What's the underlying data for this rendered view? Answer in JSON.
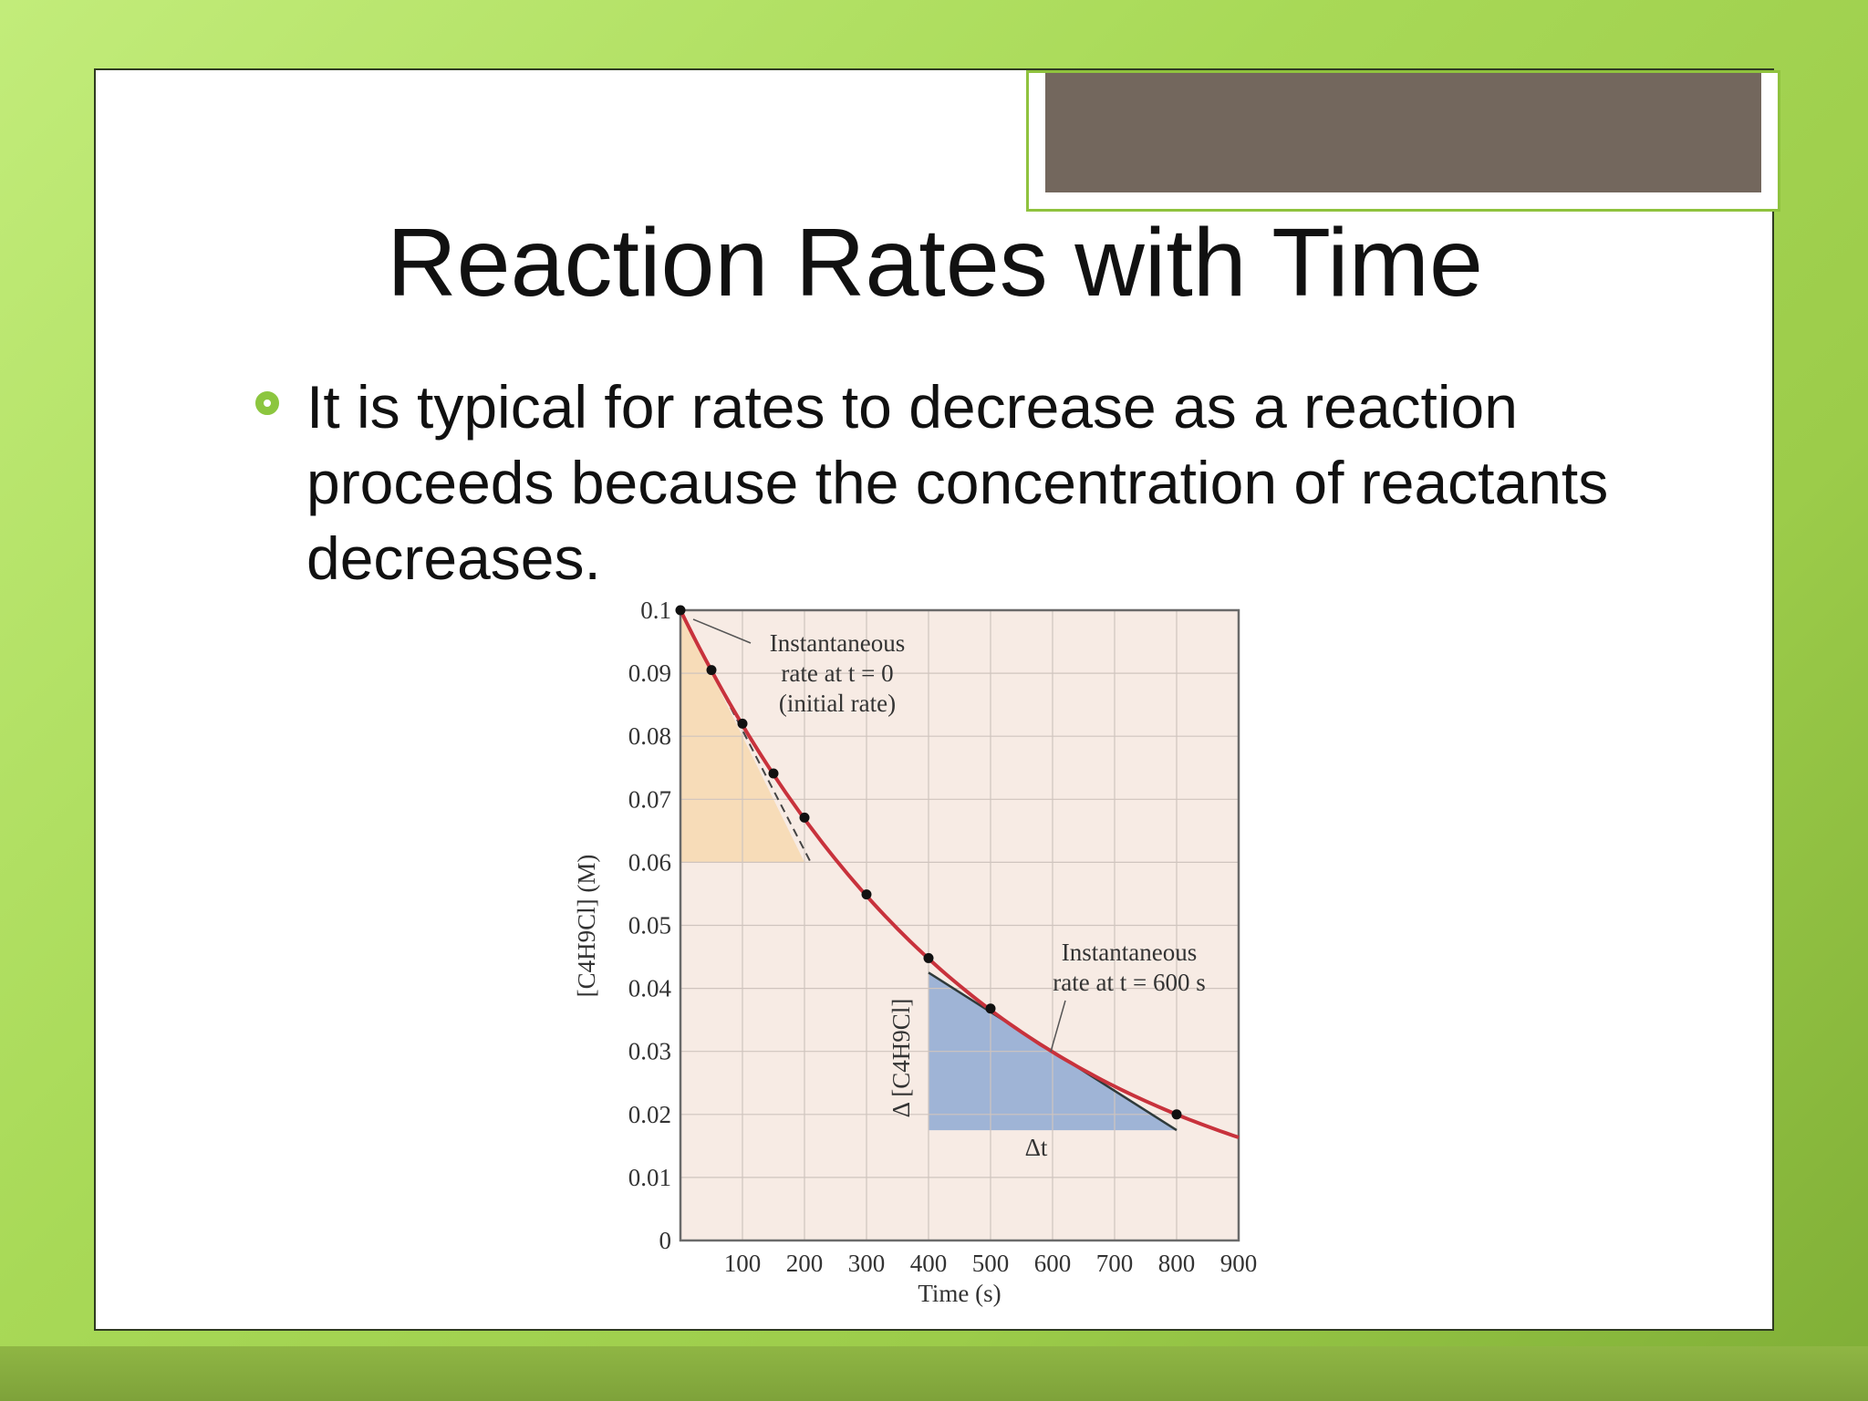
{
  "slide": {
    "title": "Reaction Rates with Time",
    "bullets": [
      "It is typical for rates to decrease as a reaction proceeds because the concentration of reactants decreases."
    ],
    "bullet_marker_color": "#8cc63f",
    "accent_tab_color": "#73675d",
    "frame_color": "#8fc23e"
  },
  "chart_data": {
    "type": "line",
    "x": [
      0,
      50,
      100,
      150,
      200,
      300,
      400,
      500,
      800
    ],
    "series": [
      {
        "values": [
          0.1,
          0.0905,
          0.082,
          0.0741,
          0.0671,
          0.0549,
          0.0448,
          0.0368,
          0.02
        ],
        "color": "#c8323c"
      }
    ],
    "xlabel": "Time (s)",
    "ylabel": "[C4H9Cl] (M)",
    "xlim": [
      0,
      900
    ],
    "ylim": [
      0,
      0.1
    ],
    "xticks": [
      100,
      200,
      300,
      400,
      500,
      600,
      700,
      800,
      900
    ],
    "yticks": [
      0,
      0.01,
      0.02,
      0.03,
      0.04,
      0.05,
      0.06,
      0.07,
      0.08,
      0.09,
      0.1
    ],
    "ytick_labels": [
      "0",
      "0.01",
      "0.02",
      "0.03",
      "0.04",
      "0.05",
      "0.06",
      "0.07",
      "0.08",
      "0.09",
      "0.1"
    ],
    "grid": true,
    "plot_background": "#f7ebe4",
    "annotations": [
      {
        "id": "initial",
        "line1": "Instantaneous",
        "line2": "rate at t = 0",
        "line3": "(initial rate)"
      },
      {
        "id": "t600",
        "line1": "Instantaneous",
        "line2": "rate at t = 600 s"
      },
      {
        "id": "delta_conc",
        "text": "Δ [C4H9Cl]"
      },
      {
        "id": "delta_t",
        "text": "Δt"
      }
    ],
    "tangent_at_0": {
      "x0": 0,
      "y0": 0.1,
      "x1": 210,
      "y1": 0.06
    },
    "initial_triangle": {
      "x0": 0,
      "x1": 200,
      "y_top": 0.1,
      "y_bottom": 0.06,
      "color": "#f7dcb8"
    },
    "tangent_at_600": {
      "x0": 400,
      "y0": 0.0425,
      "x1": 800,
      "y1": 0.0175
    },
    "triangle_600": {
      "x0": 400,
      "x1": 800,
      "y_top": 0.0425,
      "y_bottom": 0.0175,
      "color": "#9fb4d6"
    }
  }
}
